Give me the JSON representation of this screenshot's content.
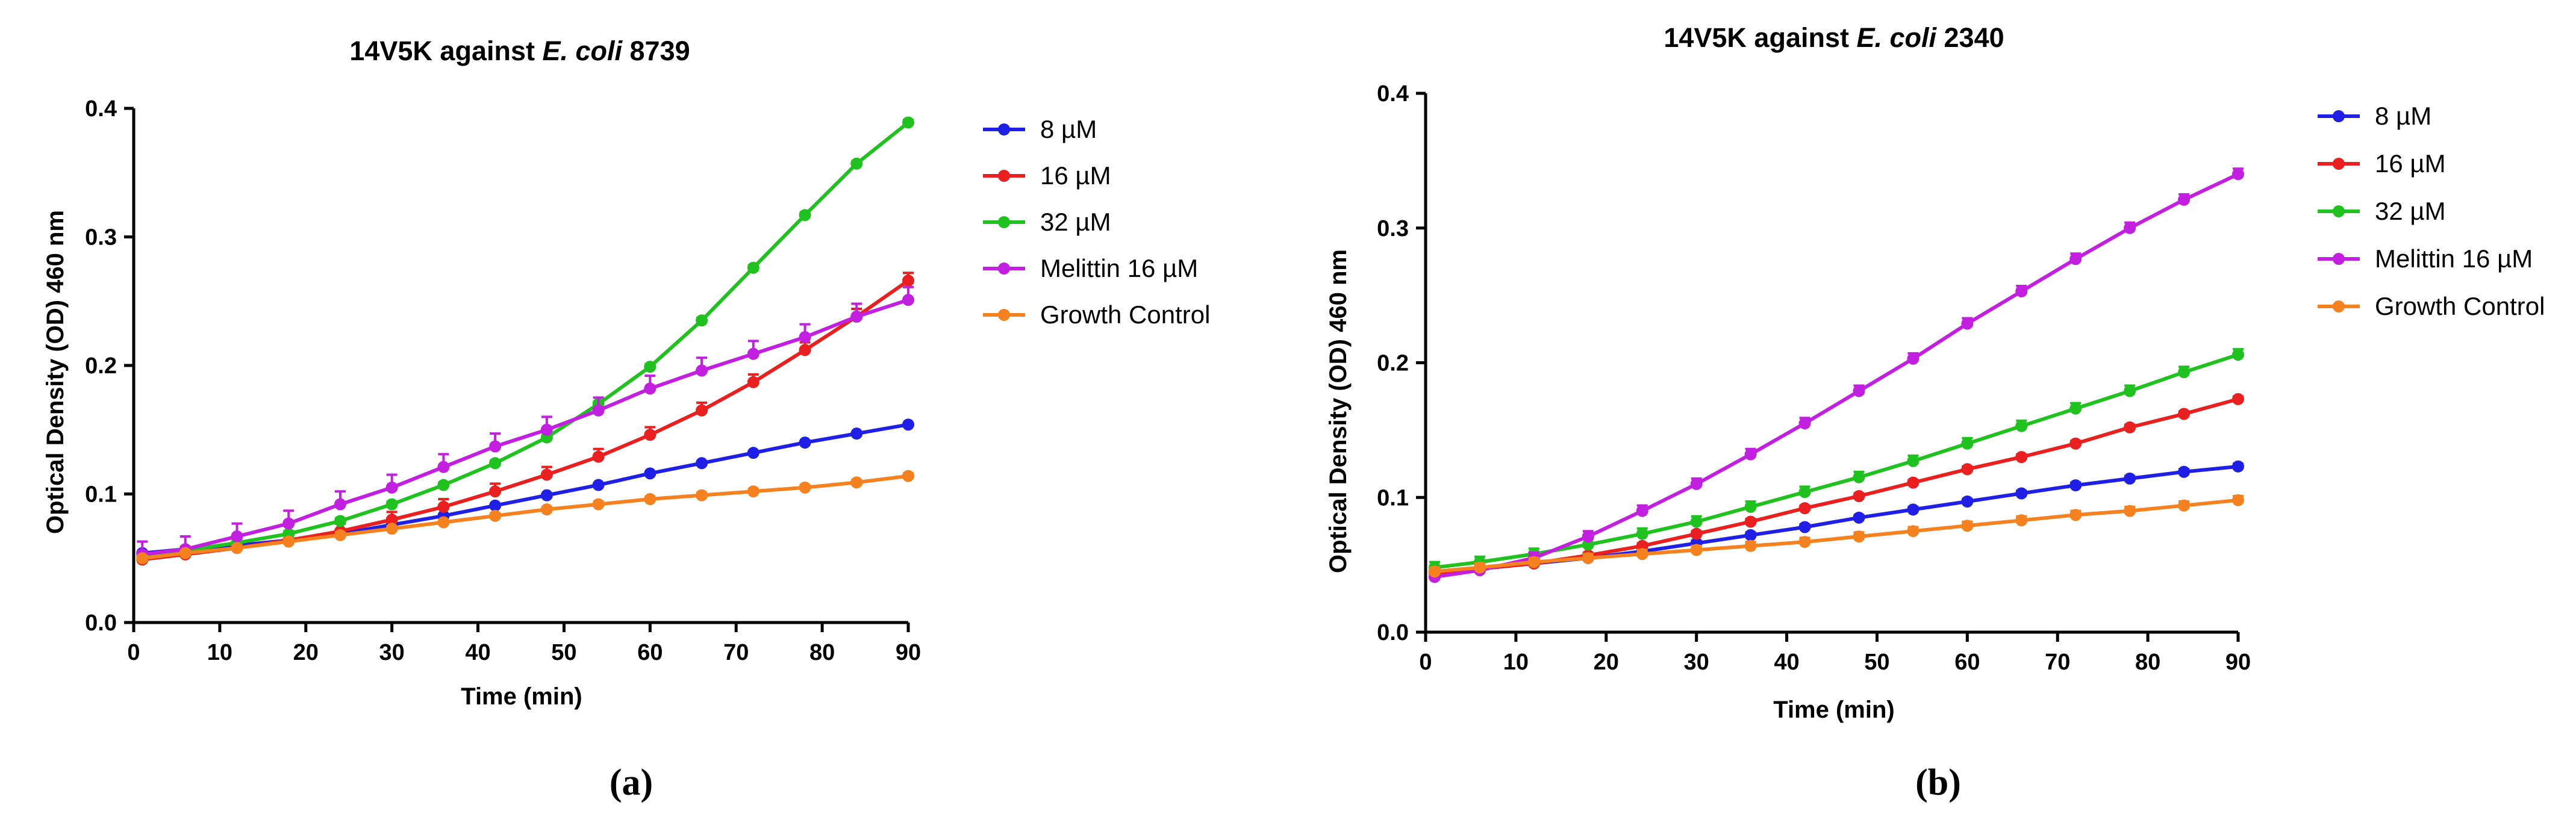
{
  "figure": {
    "panels": [
      "(a)",
      "(b)"
    ]
  },
  "colors": {
    "8 µM": "#1f1fe6",
    "16 µM": "#ea1f1f",
    "32 µM": "#1fc21f",
    "Melittin 16 µM": "#c21fe0",
    "Growth Control": "#f5821f"
  },
  "chart_data": [
    {
      "type": "line",
      "panel_label": "(a)",
      "title_prefix": "14V5K against ",
      "title_italic": "E. coli",
      "title_suffix": " 8739",
      "xlabel": "Time (min)",
      "ylabel": "Optical Density (OD) 460 nm",
      "xlim": [
        0,
        90
      ],
      "ylim": [
        0,
        0.4
      ],
      "xticks": [
        0,
        10,
        20,
        30,
        40,
        50,
        60,
        70,
        80,
        90
      ],
      "yticks": [
        0.0,
        0.1,
        0.2,
        0.3,
        0.4
      ],
      "ytick_labels": [
        "0.0",
        "0.1",
        "0.2",
        "0.3",
        "0.4"
      ],
      "grid": false,
      "legend_position": "right",
      "series": [
        {
          "name": "8 µM",
          "points": [
            [
              1,
              0.054
            ],
            [
              6,
              0.057
            ],
            [
              12,
              0.06
            ],
            [
              18,
              0.064
            ],
            [
              24,
              0.069
            ],
            [
              30,
              0.076
            ],
            [
              36,
              0.083
            ],
            [
              42,
              0.091
            ],
            [
              48,
              0.099
            ],
            [
              54,
              0.107
            ],
            [
              60,
              0.116
            ],
            [
              66,
              0.124
            ],
            [
              72,
              0.132
            ],
            [
              78,
              0.14
            ],
            [
              84,
              0.147
            ],
            [
              90,
              0.154
            ]
          ],
          "error": 0
        },
        {
          "name": "16 µM",
          "points": [
            [
              1,
              0.049
            ],
            [
              6,
              0.053
            ],
            [
              12,
              0.058
            ],
            [
              18,
              0.064
            ],
            [
              24,
              0.071
            ],
            [
              30,
              0.08
            ],
            [
              36,
              0.09
            ],
            [
              42,
              0.102
            ],
            [
              48,
              0.115
            ],
            [
              54,
              0.129
            ],
            [
              60,
              0.146
            ],
            [
              66,
              0.165
            ],
            [
              72,
              0.187
            ],
            [
              78,
              0.212
            ],
            [
              84,
              0.238
            ],
            [
              90,
              0.266
            ]
          ],
          "error": 0.006
        },
        {
          "name": "32 µM",
          "points": [
            [
              1,
              0.052
            ],
            [
              6,
              0.056
            ],
            [
              12,
              0.062
            ],
            [
              18,
              0.069
            ],
            [
              24,
              0.079
            ],
            [
              30,
              0.092
            ],
            [
              36,
              0.107
            ],
            [
              42,
              0.124
            ],
            [
              48,
              0.144
            ],
            [
              54,
              0.17
            ],
            [
              60,
              0.199
            ],
            [
              66,
              0.235
            ],
            [
              72,
              0.276
            ],
            [
              78,
              0.317
            ],
            [
              84,
              0.357
            ],
            [
              90,
              0.389
            ]
          ],
          "error": 0.002
        },
        {
          "name": "Melittin 16 µM",
          "points": [
            [
              1,
              0.053
            ],
            [
              6,
              0.057
            ],
            [
              12,
              0.067
            ],
            [
              18,
              0.077
            ],
            [
              24,
              0.092
            ],
            [
              30,
              0.105
            ],
            [
              36,
              0.121
            ],
            [
              42,
              0.137
            ],
            [
              48,
              0.15
            ],
            [
              54,
              0.165
            ],
            [
              60,
              0.182
            ],
            [
              66,
              0.196
            ],
            [
              72,
              0.209
            ],
            [
              78,
              0.222
            ],
            [
              84,
              0.238
            ],
            [
              90,
              0.251
            ]
          ],
          "error": 0.01
        },
        {
          "name": "Growth Control",
          "points": [
            [
              1,
              0.05
            ],
            [
              6,
              0.054
            ],
            [
              12,
              0.058
            ],
            [
              18,
              0.063
            ],
            [
              24,
              0.068
            ],
            [
              30,
              0.073
            ],
            [
              36,
              0.078
            ],
            [
              42,
              0.083
            ],
            [
              48,
              0.088
            ],
            [
              54,
              0.092
            ],
            [
              60,
              0.096
            ],
            [
              66,
              0.099
            ],
            [
              72,
              0.102
            ],
            [
              78,
              0.105
            ],
            [
              84,
              0.109
            ],
            [
              90,
              0.114
            ]
          ],
          "error": 0.002
        }
      ]
    },
    {
      "type": "line",
      "panel_label": "(b)",
      "title_prefix": "14V5K against ",
      "title_italic": "E. coli",
      "title_suffix": " 2340",
      "xlabel": "Time (min)",
      "ylabel": "Optical Density (OD) 460 nm",
      "xlim": [
        0,
        90
      ],
      "ylim": [
        0,
        0.4
      ],
      "xticks": [
        0,
        10,
        20,
        30,
        40,
        50,
        60,
        70,
        80,
        90
      ],
      "yticks": [
        0.0,
        0.1,
        0.2,
        0.3,
        0.4
      ],
      "ytick_labels": [
        "0.0",
        "0.1",
        "0.2",
        "0.3",
        "0.4"
      ],
      "grid": false,
      "legend_position": "right",
      "series": [
        {
          "name": "8 µM",
          "points": [
            [
              1,
              0.045
            ],
            [
              6,
              0.047
            ],
            [
              12,
              0.051
            ],
            [
              18,
              0.055
            ],
            [
              24,
              0.06
            ],
            [
              30,
              0.066
            ],
            [
              36,
              0.072
            ],
            [
              42,
              0.078
            ],
            [
              48,
              0.085
            ],
            [
              54,
              0.091
            ],
            [
              60,
              0.097
            ],
            [
              66,
              0.103
            ],
            [
              72,
              0.109
            ],
            [
              78,
              0.114
            ],
            [
              84,
              0.119
            ],
            [
              90,
              0.123
            ]
          ],
          "error": 0.002
        },
        {
          "name": "16 µM",
          "points": [
            [
              1,
              0.044
            ],
            [
              6,
              0.047
            ],
            [
              12,
              0.051
            ],
            [
              18,
              0.057
            ],
            [
              24,
              0.064
            ],
            [
              30,
              0.073
            ],
            [
              36,
              0.082
            ],
            [
              42,
              0.092
            ],
            [
              48,
              0.101
            ],
            [
              54,
              0.111
            ],
            [
              60,
              0.121
            ],
            [
              66,
              0.13
            ],
            [
              72,
              0.14
            ],
            [
              78,
              0.152
            ],
            [
              84,
              0.162
            ],
            [
              90,
              0.173
            ]
          ],
          "error": 0.002
        },
        {
          "name": "32 µM",
          "points": [
            [
              1,
              0.048
            ],
            [
              6,
              0.052
            ],
            [
              12,
              0.058
            ],
            [
              18,
              0.065
            ],
            [
              24,
              0.073
            ],
            [
              30,
              0.082
            ],
            [
              36,
              0.093
            ],
            [
              42,
              0.104
            ],
            [
              48,
              0.115
            ],
            [
              54,
              0.127
            ],
            [
              60,
              0.14
            ],
            [
              66,
              0.153
            ],
            [
              72,
              0.166
            ],
            [
              78,
              0.179
            ],
            [
              84,
              0.193
            ],
            [
              90,
              0.206
            ]
          ],
          "error": 0.004
        },
        {
          "name": "Melittin 16 µM",
          "points": [
            [
              1,
              0.041
            ],
            [
              6,
              0.046
            ],
            [
              12,
              0.055
            ],
            [
              18,
              0.071
            ],
            [
              24,
              0.09
            ],
            [
              30,
              0.11
            ],
            [
              36,
              0.132
            ],
            [
              42,
              0.155
            ],
            [
              48,
              0.179
            ],
            [
              54,
              0.203
            ],
            [
              60,
              0.229
            ],
            [
              66,
              0.253
            ],
            [
              72,
              0.277
            ],
            [
              78,
              0.3
            ],
            [
              84,
              0.321
            ],
            [
              90,
              0.34
            ]
          ],
          "error": 0.004
        },
        {
          "name": "Growth Control",
          "points": [
            [
              1,
              0.045
            ],
            [
              6,
              0.048
            ],
            [
              12,
              0.052
            ],
            [
              18,
              0.055
            ],
            [
              24,
              0.058
            ],
            [
              30,
              0.061
            ],
            [
              36,
              0.064
            ],
            [
              42,
              0.067
            ],
            [
              48,
              0.071
            ],
            [
              54,
              0.075
            ],
            [
              60,
              0.079
            ],
            [
              66,
              0.083
            ],
            [
              72,
              0.087
            ],
            [
              78,
              0.09
            ],
            [
              84,
              0.094
            ],
            [
              90,
              0.098
            ]
          ],
          "error": 0.003
        }
      ]
    }
  ]
}
